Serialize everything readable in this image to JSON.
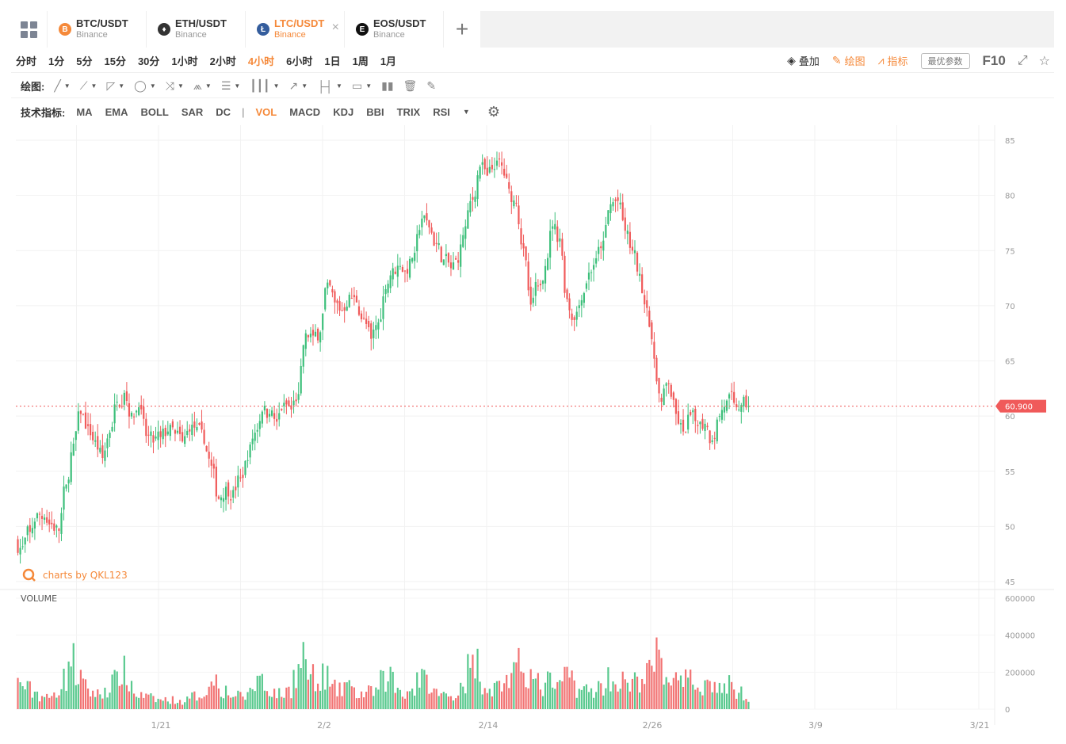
{
  "tabs": [
    {
      "pair": "BTC/USDT",
      "exchange": "Binance",
      "coin_symbol": "B",
      "coin_color": "#f5893a",
      "active": false
    },
    {
      "pair": "ETH/USDT",
      "exchange": "Binance",
      "coin_symbol": "♦",
      "coin_color": "#333333",
      "active": false
    },
    {
      "pair": "LTC/USDT",
      "exchange": "Binance",
      "coin_symbol": "Ł",
      "coin_color": "#345d9d",
      "active": true
    },
    {
      "pair": "EOS/USDT",
      "exchange": "Binance",
      "coin_symbol": "E",
      "coin_color": "#111111",
      "active": false
    }
  ],
  "tab_close": "×",
  "tab_add": "+",
  "intervals": [
    "分时",
    "1分",
    "5分",
    "15分",
    "30分",
    "1小时",
    "2小时",
    "4小时",
    "6小时",
    "1日",
    "1周",
    "1月"
  ],
  "active_interval": "4小时",
  "right_tools": {
    "overlay": "叠加",
    "draw": "绘图",
    "indicator": "指标",
    "preferences": "最优参数",
    "f10": "F10",
    "fullscreen_icon": "⤢",
    "star_icon": "☆"
  },
  "drawing": {
    "label": "绘图:",
    "tools": [
      {
        "icon": "╱",
        "name": "line-tool"
      },
      {
        "icon": "⟋",
        "name": "ray-tool"
      },
      {
        "icon": "◸",
        "name": "channel-tool"
      },
      {
        "icon": "◯",
        "name": "shape-tool"
      },
      {
        "icon": "⤨",
        "name": "pattern-tool"
      },
      {
        "icon": "⩕",
        "name": "wave-tool"
      },
      {
        "icon": "☰",
        "name": "fib-tool"
      },
      {
        "icon": "┃┃┃",
        "name": "gann-tool"
      },
      {
        "icon": "↗",
        "name": "arrow-tool"
      },
      {
        "icon": "├┤",
        "name": "measure-tool"
      },
      {
        "icon": "▭",
        "name": "text-tool"
      }
    ],
    "extra": [
      {
        "icon": "▮▮",
        "name": "bars-tool"
      },
      {
        "icon": "🗑",
        "name": "trash-tool"
      },
      {
        "icon": "✎",
        "name": "eraser-tool"
      }
    ]
  },
  "indicators": {
    "label": "技术指标:",
    "main": [
      "MA",
      "EMA",
      "BOLL",
      "SAR",
      "DC"
    ],
    "separator": "|",
    "sub": [
      "VOL",
      "MACD",
      "KDJ",
      "BBI",
      "TRIX",
      "RSI"
    ],
    "active": "VOL",
    "more_icon": "▼",
    "gear_icon": "⚙"
  },
  "chart_data": {
    "type": "candlestick",
    "price_axis": {
      "min": 45,
      "max": 85,
      "ticks": [
        45,
        50,
        55,
        60,
        65,
        70,
        75,
        80,
        85
      ]
    },
    "volume_axis": {
      "min": 0,
      "max": 600000,
      "ticks": [
        0,
        200000,
        400000,
        600000
      ]
    },
    "x_ticks": [
      "1/21",
      "2/2",
      "2/14",
      "2/26",
      "3/9",
      "3/21"
    ],
    "current_price": "60.900",
    "current_price_value": 60.9,
    "volume_title": "VOLUME",
    "watermark": "charts by QKL123",
    "up_color": "#3cbf7a",
    "down_color": "#f05a5a",
    "price_line_color": "#f05a5a",
    "grid": true,
    "candles_close": [
      48.2,
      49.5,
      51.2,
      50.8,
      50.2,
      49.6,
      53.8,
      57.5,
      60.2,
      59.1,
      57.8,
      56.2,
      58.5,
      61.3,
      62.1,
      60.3,
      60.8,
      58.2,
      57.6,
      58.1,
      58.6,
      58.4,
      57.7,
      58.6,
      59.0,
      57.5,
      55.5,
      52.5,
      53.6,
      53.3,
      54.4,
      56.0,
      58.5,
      60.4,
      60.2,
      59.5,
      61.2,
      60.6,
      62.0,
      67.5,
      67.3,
      67.6,
      72.1,
      70.3,
      69.6,
      71.0,
      70.3,
      68.9,
      67.0,
      68.5,
      71.5,
      73.4,
      73.6,
      72.9,
      74.8,
      77.9,
      77.1,
      75.6,
      74.2,
      73.4,
      73.9,
      77.2,
      79.6,
      82.6,
      81.8,
      82.4,
      82.7,
      80.6,
      79.3,
      75.2,
      70.1,
      71.8,
      73.6,
      77.2,
      76.1,
      70.6,
      68.7,
      70.5,
      73.0,
      74.3,
      75.9,
      79.2,
      79.5,
      76.8,
      75.0,
      72.9,
      69.8,
      65.2,
      61.3,
      62.9,
      60.2,
      58.6,
      60.1,
      59.1,
      59.3,
      57.8,
      60.0,
      61.4,
      61.2,
      61.0,
      60.9
    ],
    "volume": [
      140000,
      110000,
      90000,
      70000,
      60000,
      100000,
      160000,
      260000,
      180000,
      120000,
      90000,
      80000,
      110000,
      150000,
      200000,
      140000,
      80000,
      70000,
      60000,
      50000,
      50000,
      50000,
      40000,
      50000,
      70000,
      80000,
      120000,
      180000,
      100000,
      80000,
      70000,
      70000,
      120000,
      170000,
      110000,
      90000,
      80000,
      100000,
      200000,
      290000,
      170000,
      120000,
      180000,
      110000,
      100000,
      140000,
      90000,
      80000,
      90000,
      100000,
      150000,
      180000,
      110000,
      90000,
      110000,
      170000,
      150000,
      90000,
      80000,
      70000,
      80000,
      150000,
      220000,
      250000,
      130000,
      110000,
      130000,
      160000,
      180000,
      230000,
      200000,
      140000,
      110000,
      150000,
      110000,
      180000,
      170000,
      110000,
      100000,
      100000,
      120000,
      170000,
      140000,
      150000,
      120000,
      150000,
      180000,
      220000,
      280000,
      180000,
      160000,
      130000,
      150000,
      140000,
      130000,
      140000,
      120000,
      110000,
      130000,
      90000,
      70000
    ]
  }
}
